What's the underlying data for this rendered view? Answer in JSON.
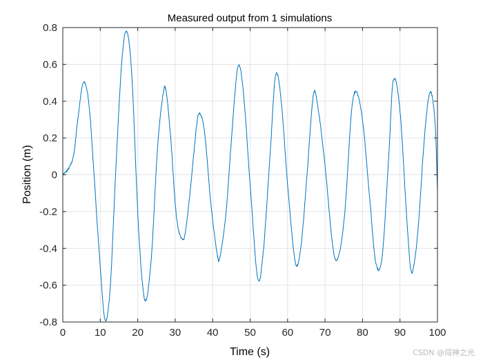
{
  "chart_data": {
    "type": "line",
    "title": "Measured output from 1 simulations",
    "xlabel": "Time (s)",
    "ylabel": "Position (m)",
    "xlim": [
      0,
      100
    ],
    "ylim": [
      -0.8,
      0.8
    ],
    "grid": true,
    "x_ticks": [
      0,
      10,
      20,
      30,
      40,
      50,
      60,
      70,
      80,
      90,
      100
    ],
    "y_ticks": [
      -0.8,
      -0.6,
      -0.4,
      -0.2,
      0,
      0.2,
      0.4,
      0.6,
      0.8
    ],
    "x_tick_labels": [
      "0",
      "10",
      "20",
      "30",
      "40",
      "50",
      "60",
      "70",
      "80",
      "90",
      "100"
    ],
    "y_tick_labels": [
      "-0.8",
      "-0.6",
      "-0.4",
      "-0.2",
      "0",
      "0.2",
      "0.4",
      "0.6",
      "0.8"
    ],
    "line_color": "#0072bd",
    "series": [
      {
        "name": "Position",
        "x": [
          0,
          1,
          2,
          3,
          4,
          5.5,
          7,
          8.5,
          10,
          11.3,
          12.7,
          14.2,
          15.7,
          17,
          18.4,
          20,
          21.3,
          22.4,
          23.8,
          25.3,
          26.8,
          27.6,
          28.8,
          30.3,
          31.8,
          32.8,
          34.2,
          35.8,
          36.8,
          38,
          39.5,
          41.2,
          42,
          43.6,
          45.4,
          46.8,
          48.2,
          50,
          52,
          53.5,
          55.3,
          56.8,
          58.3,
          60,
          62,
          63.5,
          65,
          66.8,
          68,
          70,
          72,
          73.5,
          75.3,
          77,
          78.3,
          80,
          81.8,
          83.5,
          85.2,
          87,
          88.2,
          90,
          92,
          93.2,
          94.8,
          96.5,
          98,
          99.3,
          100
        ],
        "y": [
          0.0,
          0.02,
          0.05,
          0.12,
          0.3,
          0.5,
          0.38,
          -0.05,
          -0.5,
          -0.79,
          -0.6,
          0.05,
          0.6,
          0.78,
          0.55,
          -0.2,
          -0.6,
          -0.67,
          -0.4,
          0.15,
          0.44,
          0.45,
          0.2,
          -0.22,
          -0.35,
          -0.3,
          -0.05,
          0.28,
          0.33,
          0.2,
          -0.15,
          -0.43,
          -0.44,
          -0.2,
          0.3,
          0.59,
          0.45,
          -0.05,
          -0.56,
          -0.42,
          0.1,
          0.54,
          0.4,
          -0.05,
          -0.47,
          -0.4,
          -0.05,
          0.42,
          0.38,
          0.05,
          -0.38,
          -0.45,
          -0.2,
          0.33,
          0.45,
          0.3,
          -0.1,
          -0.47,
          -0.45,
          0.1,
          0.51,
          0.35,
          -0.3,
          -0.53,
          -0.3,
          0.2,
          0.45,
          0.3,
          -0.08
        ]
      }
    ]
  },
  "watermark": "CSDN @闯神之光"
}
